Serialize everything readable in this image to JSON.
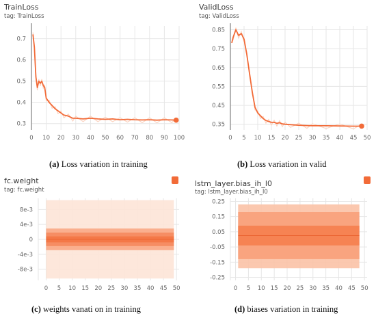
{
  "chart_data": [
    {
      "id": "train",
      "type": "line",
      "title": "TrainLoss",
      "tag": "tag: TrainLoss",
      "caption_letter": "(a)",
      "caption_text": " Loss variation in training",
      "xlim": [
        0,
        100
      ],
      "ylim": [
        0.27,
        0.76
      ],
      "xticks": [
        0,
        10,
        20,
        30,
        40,
        50,
        60,
        70,
        80,
        90,
        100
      ],
      "yticks": [
        0.3,
        0.4,
        0.5,
        0.6,
        0.7
      ],
      "ytick_labels": [
        "0.3",
        "0.4",
        "0.5",
        "0.6",
        "0.7"
      ],
      "series": [
        {
          "color": "#f26b38",
          "x": [
            1,
            2,
            3,
            4,
            5,
            6,
            7,
            8,
            9,
            10,
            12,
            14,
            16,
            18,
            20,
            22,
            25,
            28,
            30,
            35,
            40,
            45,
            50,
            55,
            60,
            65,
            70,
            75,
            80,
            85,
            90,
            95,
            98
          ],
          "y": [
            0.72,
            0.66,
            0.52,
            0.47,
            0.5,
            0.49,
            0.5,
            0.48,
            0.47,
            0.42,
            0.4,
            0.385,
            0.37,
            0.36,
            0.35,
            0.34,
            0.335,
            0.325,
            0.325,
            0.322,
            0.325,
            0.322,
            0.32,
            0.322,
            0.318,
            0.32,
            0.318,
            0.317,
            0.318,
            0.316,
            0.318,
            0.317,
            0.316
          ]
        }
      ]
    },
    {
      "id": "valid",
      "type": "line",
      "title": "ValidLoss",
      "tag": "tag: ValidLoss",
      "caption_letter": "(b)",
      "caption_text": " Loss variation in valid",
      "xlim": [
        0,
        50
      ],
      "ylim": [
        0.32,
        0.87
      ],
      "xticks": [
        0,
        5,
        10,
        15,
        20,
        25,
        30,
        35,
        40,
        45,
        50
      ],
      "yticks": [
        0.35,
        0.45,
        0.55,
        0.65,
        0.75,
        0.85
      ],
      "ytick_labels": [
        "0.35",
        "0.45",
        "0.55",
        "0.65",
        "0.75",
        "0.85"
      ],
      "series": [
        {
          "color": "#f26b38",
          "x": [
            0.5,
            1,
            2,
            3,
            4,
            5,
            6,
            7,
            8,
            9,
            10,
            11,
            12,
            13,
            14,
            15,
            16,
            17,
            18,
            19,
            20,
            22,
            25,
            28,
            30,
            35,
            40,
            45,
            48
          ],
          "y": [
            0.78,
            0.81,
            0.85,
            0.82,
            0.83,
            0.8,
            0.72,
            0.62,
            0.52,
            0.44,
            0.41,
            0.395,
            0.38,
            0.37,
            0.365,
            0.36,
            0.36,
            0.355,
            0.358,
            0.352,
            0.35,
            0.348,
            0.345,
            0.343,
            0.342,
            0.342,
            0.341,
            0.34,
            0.34
          ]
        }
      ]
    },
    {
      "id": "fcw",
      "type": "area",
      "title": "fc.weight",
      "tag": "tag: fc.weight",
      "caption_letter": "(c)",
      "caption_text": " weights vanati on in training",
      "xlim": [
        -3,
        51
      ],
      "ylim": [
        -0.011,
        0.011
      ],
      "xticks": [
        0,
        5,
        10,
        15,
        20,
        25,
        30,
        35,
        40,
        45,
        50
      ],
      "yticks": [
        0.008,
        0.004,
        0,
        -0.004,
        -0.008
      ],
      "ytick_labels": [
        "8e-3",
        "4e-3",
        "0",
        "-4e-3",
        "-8e-3"
      ],
      "bands": [
        {
          "x0": 0,
          "x1": 49,
          "lo": -0.0105,
          "hi": 0.0105,
          "color": "#fde4d7"
        },
        {
          "x0": 0,
          "x1": 49,
          "lo": -0.0029,
          "hi": 0.0029,
          "color": "#f9a885"
        },
        {
          "x0": 0,
          "x1": 49,
          "lo": -0.0018,
          "hi": 0.0018,
          "color": "#f58a5e"
        },
        {
          "x0": 0,
          "x1": 49,
          "lo": -0.0008,
          "hi": 0.0008,
          "color": "#f47644"
        }
      ]
    },
    {
      "id": "lstm",
      "type": "area",
      "title": "lstm_layer.bias_ih_l0",
      "tag": "tag: lstm_layer.bias_ih_l0",
      "caption_letter": "(d)",
      "caption_text": " biases variation in training",
      "xlim": [
        -2,
        51
      ],
      "ylim": [
        -0.27,
        0.27
      ],
      "xticks": [
        0,
        5,
        10,
        15,
        20,
        25,
        30,
        35,
        40,
        45,
        50
      ],
      "yticks": [
        0.25,
        0.15,
        0.05,
        -0.05,
        -0.15,
        -0.25
      ],
      "ytick_labels": [
        "0.25",
        "0.15",
        "0.05",
        "-0.05",
        "-0.15",
        "-0.25"
      ],
      "bands": [
        {
          "x0": 1,
          "x1": 48,
          "lo": -0.19,
          "hi": 0.23,
          "color": "#fbc2a6"
        },
        {
          "x0": 1,
          "x1": 48,
          "lo": -0.13,
          "hi": 0.18,
          "color": "#f8a07a"
        },
        {
          "x0": 1,
          "x1": 48,
          "lo": -0.04,
          "hi": 0.09,
          "color": "#f5804f"
        }
      ]
    }
  ],
  "colors": {
    "accent": "#f26b38",
    "grid": "#e6e6e6",
    "axis": "#9a9a9a"
  }
}
